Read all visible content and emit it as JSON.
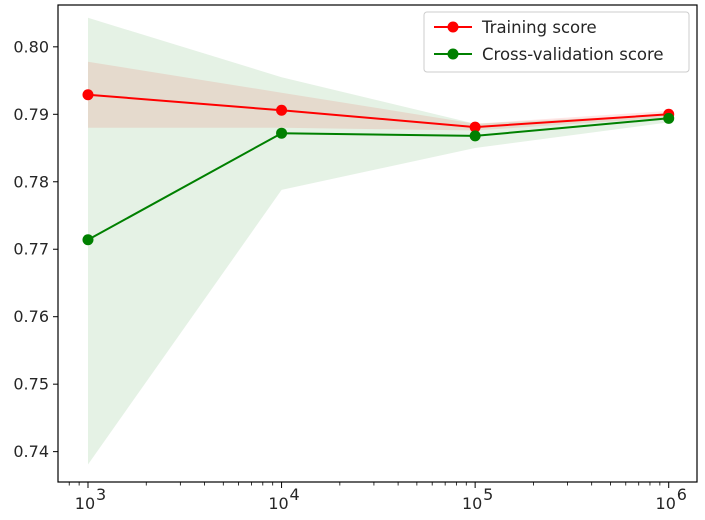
{
  "chart_data": {
    "type": "line",
    "title": "",
    "xlabel": "",
    "ylabel": "",
    "x": [
      1000,
      10000,
      100000,
      1000000
    ],
    "x_scale": "log",
    "xlim": [
      700,
      1400000
    ],
    "ylim": [
      0.7355,
      0.8062
    ],
    "x_ticks": [
      {
        "value": 1000,
        "base": "10",
        "exp": "3"
      },
      {
        "value": 10000,
        "base": "10",
        "exp": "4"
      },
      {
        "value": 100000,
        "base": "10",
        "exp": "5"
      },
      {
        "value": 1000000,
        "base": "10",
        "exp": "6"
      }
    ],
    "y_ticks": [
      {
        "value": 0.74,
        "label": "0.74"
      },
      {
        "value": 0.75,
        "label": "0.75"
      },
      {
        "value": 0.76,
        "label": "0.76"
      },
      {
        "value": 0.77,
        "label": "0.77"
      },
      {
        "value": 0.78,
        "label": "0.78"
      },
      {
        "value": 0.79,
        "label": "0.79"
      },
      {
        "value": 0.8,
        "label": "0.80"
      }
    ],
    "grid": false,
    "legend_position": "top-right",
    "series": [
      {
        "name": "Training score",
        "color": "#ff0000",
        "values": [
          0.7929,
          0.7906,
          0.7881,
          0.79
        ],
        "band_lower": [
          0.788,
          0.788,
          0.7876,
          0.7895
        ],
        "band_upper": [
          0.7978,
          0.7932,
          0.7886,
          0.7905
        ],
        "band_color": "#ff0000"
      },
      {
        "name": "Cross-validation score",
        "color": "#008000",
        "values": [
          0.7714,
          0.7872,
          0.7868,
          0.7894
        ],
        "band_lower": [
          0.7381,
          0.7788,
          0.785,
          0.7888
        ],
        "band_upper": [
          0.8043,
          0.7955,
          0.7886,
          0.79
        ],
        "band_color": "#008000"
      }
    ]
  }
}
